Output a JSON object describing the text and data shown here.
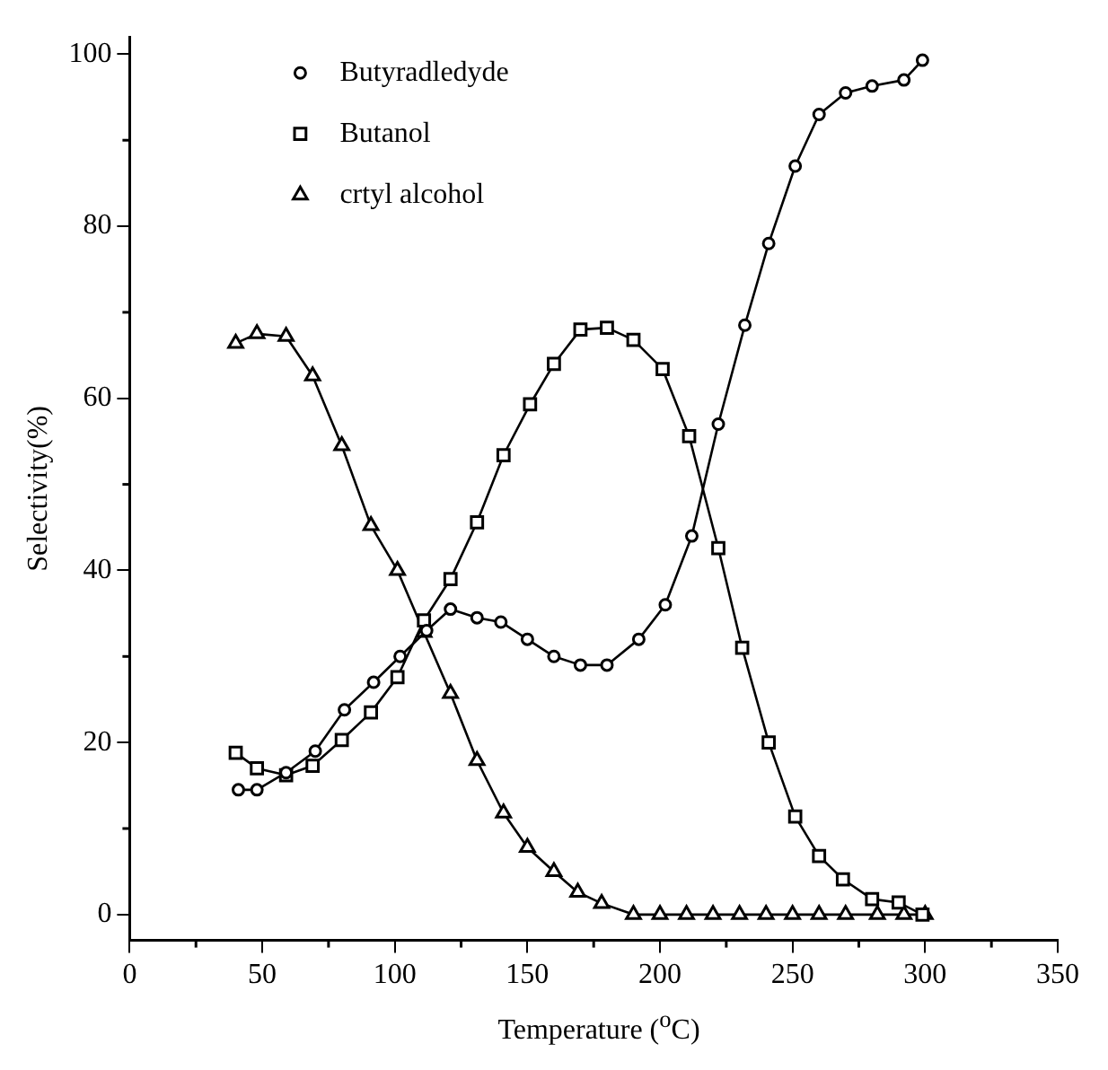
{
  "chart_data": {
    "type": "line",
    "xlabel": "Temperature ($^{o}$C)",
    "ylabel": "Selectivity(%)",
    "xlim": [
      0,
      350
    ],
    "xticks": [
      0,
      50,
      100,
      150,
      200,
      250,
      300,
      350
    ],
    "ylim": [
      -3,
      102
    ],
    "yticks": [
      0,
      20,
      40,
      60,
      80,
      100
    ],
    "grid": false,
    "legend": "top left",
    "line_style": "solid",
    "series": [
      {
        "name": "Butyradledyde",
        "color": "#000000",
        "marker": "circle",
        "x": [
          41,
          48,
          59,
          70,
          81,
          92,
          102,
          112,
          121,
          131,
          140,
          150,
          160,
          170,
          180,
          192,
          202,
          212,
          222,
          232,
          241,
          251,
          260,
          270,
          280,
          292,
          299
        ],
        "values": [
          14.5,
          14.5,
          16.5,
          19,
          23.8,
          27,
          30,
          33,
          35.5,
          34.5,
          34,
          32,
          30,
          29,
          29,
          32,
          36,
          44,
          57,
          68.5,
          78,
          87,
          93,
          95.5,
          96.3,
          97,
          99.3
        ]
      },
      {
        "name": "Butanol",
        "color": "#000000",
        "marker": "square",
        "x": [
          40,
          48,
          59,
          69,
          80,
          91,
          101,
          111,
          121,
          131,
          141,
          151,
          160,
          170,
          180,
          190,
          201,
          211,
          222,
          231,
          241,
          251,
          260,
          269,
          280,
          290,
          299
        ],
        "values": [
          18.8,
          17,
          16.2,
          17.3,
          20.3,
          23.5,
          27.6,
          34.2,
          39,
          45.6,
          53.4,
          59.3,
          64,
          68,
          68.2,
          66.8,
          63.4,
          55.6,
          42.6,
          31,
          20,
          11.4,
          6.8,
          4.1,
          1.8,
          1.4,
          0
        ]
      },
      {
        "name": "crtyl alcohol",
        "color": "#000000",
        "marker": "triangle",
        "x": [
          40,
          48,
          59,
          69,
          80,
          91,
          101,
          111,
          121,
          131,
          141,
          150,
          160,
          169,
          178,
          190,
          200,
          210,
          220,
          230,
          240,
          250,
          260,
          270,
          282,
          292,
          300
        ],
        "values": [
          66.4,
          67.5,
          67.2,
          62.6,
          54.5,
          45.2,
          40,
          32.8,
          25.7,
          17.9,
          11.8,
          7.8,
          5,
          2.6,
          1.3,
          0,
          0,
          0,
          0,
          0,
          0,
          0,
          0,
          0,
          0,
          0,
          0
        ]
      }
    ]
  }
}
